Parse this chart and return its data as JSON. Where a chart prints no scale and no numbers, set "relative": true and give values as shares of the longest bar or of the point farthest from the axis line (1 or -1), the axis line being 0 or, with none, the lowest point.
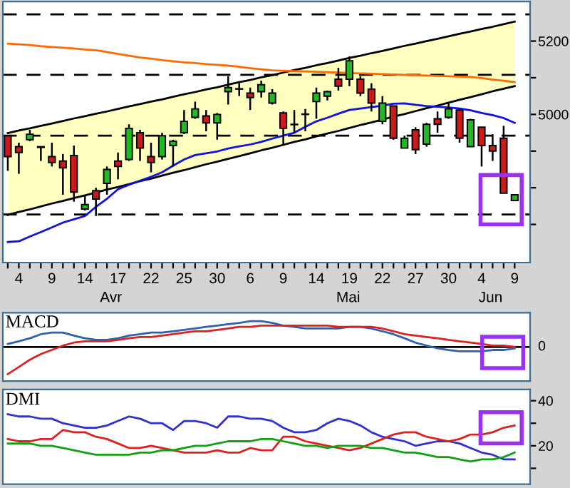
{
  "chart_data": [
    {
      "type": "candlestick",
      "categories": [
        null,
        "4",
        null,
        null,
        "9",
        null,
        null,
        "14",
        null,
        null,
        "17",
        null,
        null,
        "22",
        null,
        null,
        "25",
        null,
        null,
        "30",
        null,
        null,
        "6",
        null,
        null,
        "9",
        null,
        null,
        "14",
        null,
        null,
        "19",
        null,
        null,
        "22",
        null,
        null,
        "27",
        null,
        null,
        "30",
        null,
        null,
        "4",
        null,
        null,
        "9"
      ],
      "ohlc": [
        [
          4942,
          4942,
          4846,
          4885
        ],
        [
          4912,
          4923,
          4838,
          4896
        ],
        [
          4931,
          4958,
          4927,
          4946
        ],
        [
          4912,
          4912,
          4873,
          4910
        ],
        [
          4885,
          4923,
          4858,
          4869
        ],
        [
          4873,
          4892,
          4781,
          4854
        ],
        [
          4888,
          4915,
          4762,
          4788
        ],
        [
          4742,
          4781,
          4738,
          4754
        ],
        [
          4792,
          4800,
          4723,
          4769
        ],
        [
          4812,
          4858,
          4781,
          4850
        ],
        [
          4873,
          4896,
          4823,
          4858
        ],
        [
          4877,
          4973,
          4873,
          4962
        ],
        [
          4950,
          4958,
          4873,
          4908
        ],
        [
          4885,
          4923,
          4842,
          4869
        ],
        [
          4885,
          4950,
          4877,
          4942
        ],
        [
          4915,
          4931,
          4858,
          4927
        ],
        [
          4950,
          5012,
          4946,
          4981
        ],
        [
          4992,
          5035,
          4988,
          5015
        ],
        [
          4996,
          5012,
          4954,
          4977
        ],
        [
          4977,
          5004,
          4931,
          5000
        ],
        [
          5062,
          5104,
          5027,
          5073
        ],
        [
          5070,
          5085,
          5050,
          5069
        ],
        [
          5058,
          5073,
          5012,
          5046
        ],
        [
          5062,
          5092,
          5046,
          5081
        ],
        [
          5031,
          5069,
          5027,
          5058
        ],
        [
          5004,
          5008,
          4919,
          4962
        ],
        [
          4973,
          5012,
          4950,
          4972
        ],
        [
          5000,
          5015,
          4954,
          5001
        ],
        [
          5035,
          5073,
          4988,
          5058
        ],
        [
          5050,
          5065,
          5038,
          5062
        ],
        [
          5096,
          5127,
          5065,
          5077
        ],
        [
          5096,
          5158,
          5077,
          5146
        ],
        [
          5096,
          5104,
          5050,
          5058
        ],
        [
          5069,
          5085,
          5008,
          5031
        ],
        [
          4981,
          5050,
          4973,
          5031
        ],
        [
          5023,
          5023,
          4931,
          4935
        ],
        [
          4908,
          4942,
          4908,
          4935
        ],
        [
          4958,
          4965,
          4892,
          4904
        ],
        [
          4919,
          4977,
          4912,
          4973
        ],
        [
          4988,
          5008,
          4950,
          4973
        ],
        [
          4992,
          5031,
          4988,
          5015
        ],
        [
          5012,
          5015,
          4923,
          4935
        ],
        [
          4912,
          4988,
          4912,
          4985
        ],
        [
          4965,
          4965,
          4858,
          4915
        ],
        [
          4915,
          4946,
          4873,
          4900
        ],
        [
          4935,
          4969,
          4785,
          4785
        ],
        [
          4765,
          4781,
          4765,
          4781
        ]
      ],
      "colors": [
        "#cc1a1a",
        "#cc1a1a",
        "#22b822",
        "#cc1a1a",
        "#cc1a1a",
        "#cc1a1a",
        "#cc1a1a",
        "#22b822",
        "#cc1a1a",
        "#22b822",
        "#cc1a1a",
        "#22b822",
        "#cc1a1a",
        "#cc1a1a",
        "#22b822",
        "#22b822",
        "#22b822",
        "#22b822",
        "#cc1a1a",
        "#22b822",
        "#22b822",
        "#cc1a1a",
        "#cc1a1a",
        "#22b822",
        "#22b822",
        "#cc1a1a",
        "#cc1a1a",
        "#22b822",
        "#22b822",
        "#22b822",
        "#cc1a1a",
        "#22b822",
        "#cc1a1a",
        "#cc1a1a",
        "#22b822",
        "#cc1a1a",
        "#22b822",
        "#cc1a1a",
        "#22b822",
        "#cc1a1a",
        "#22b822",
        "#cc1a1a",
        "#22b822",
        "#cc1a1a",
        "#cc1a1a",
        "#cc1a1a",
        "#22b822"
      ],
      "series": [
        {
          "type": "line",
          "color": "#000000",
          "upper": [
            4949,
            4956,
            4962,
            4969,
            4975,
            4982,
            4989,
            4995,
            5002,
            5008,
            5015,
            5022,
            5028,
            5035,
            5041,
            5048,
            5055,
            5061,
            5068,
            5074,
            5081,
            5088,
            5094,
            5101,
            5107,
            5114,
            5121,
            5127,
            5134,
            5140,
            5147,
            5154,
            5160,
            5167,
            5173,
            5180,
            5187,
            5193,
            5200,
            5206,
            5213,
            5220,
            5226,
            5233,
            5239,
            5246,
            5253
          ],
          "values": [
            4949,
            4956,
            4962,
            4969,
            4975,
            4982,
            4989,
            4995,
            5002,
            5008,
            5015,
            5022,
            5028,
            5035,
            5041,
            5048,
            5055,
            5061,
            5068,
            5074,
            5081,
            5088,
            5094,
            5101,
            5107,
            5114,
            5121,
            5127,
            5134,
            5140,
            5147,
            5154,
            5160,
            5167,
            5173,
            5180,
            5187,
            5193,
            5200,
            5206,
            5213,
            5220,
            5226,
            5233,
            5239,
            5246,
            5253
          ],
          "lower": [
            4726,
            4734,
            4741,
            4749,
            4757,
            4764,
            4772,
            4779,
            4787,
            4795,
            4802,
            4810,
            4818,
            4825,
            4833,
            4841,
            4848,
            4856,
            4864,
            4871,
            4879,
            4886,
            4894,
            4902,
            4909,
            4917,
            4925,
            4932,
            4940,
            4948,
            4955,
            4963,
            4971,
            4978,
            4986,
            4994,
            5001,
            5009,
            5017,
            5024,
            5032,
            5040,
            5047,
            5055,
            5063,
            5070,
            5077
          ]
        },
        {
          "type": "line",
          "color": "#000000",
          "values": [
            4726,
            4734,
            4741,
            4749,
            4757,
            4764,
            4772,
            4779,
            4787,
            4795,
            4802,
            4810,
            4818,
            4825,
            4833,
            4841,
            4848,
            4856,
            4864,
            4871,
            4879,
            4886,
            4894,
            4902,
            4909,
            4917,
            4925,
            4932,
            4940,
            4948,
            4955,
            4963,
            4971,
            4978,
            4986,
            4994,
            5001,
            5009,
            5017,
            5024,
            5032,
            5040,
            5047,
            5055,
            5063,
            5070,
            5077
          ]
        },
        {
          "type": "line",
          "color": "#ff6a00",
          "values": [
            5193,
            5191,
            5189,
            5186,
            5184,
            5182,
            5180,
            5177,
            5175,
            5170,
            5165,
            5160,
            5155,
            5152,
            5148,
            5145,
            5142,
            5140,
            5137,
            5135,
            5133,
            5130,
            5126,
            5123,
            5120,
            5119,
            5118,
            5117,
            5116,
            5115,
            5114,
            5113,
            5112,
            5111,
            5110,
            5109,
            5108,
            5107,
            5106,
            5105,
            5104,
            5103,
            5102,
            5099,
            5095,
            5092,
            5088
          ]
        },
        {
          "type": "line",
          "color": "#1010e0",
          "values": [
            4652,
            4654,
            4667,
            4679,
            4692,
            4705,
            4714,
            4723,
            4748,
            4770,
            4796,
            4808,
            4819,
            4830,
            4842,
            4860,
            4877,
            4889,
            4894,
            4899,
            4907,
            4913,
            4918,
            4925,
            4934,
            4942,
            4950,
            4966,
            4981,
            4991,
            5002,
            5012,
            5016,
            5020,
            5024,
            5029,
            5030,
            5026,
            5023,
            5021,
            5019,
            5016,
            5011,
            5004,
            4998,
            4990,
            4977
          ]
        }
      ],
      "ref_lines": [
        {
          "axis": "y",
          "value": 5273,
          "color": "#000000",
          "line_style": "dashed"
        },
        {
          "axis": "y",
          "value": 5108,
          "color": "#000000",
          "line_style": "dashed"
        },
        {
          "axis": "y",
          "value": 4942,
          "color": "#000000",
          "line_style": "dashed"
        },
        {
          "axis": "y",
          "value": 4727,
          "color": "#000000",
          "line_style": "dashed"
        }
      ],
      "ylim": [
        4596,
        5308
      ],
      "yticks": [
        {
          "value": 4700,
          "label": null
        },
        {
          "value": 4800,
          "label": null
        },
        {
          "value": 4900,
          "label": null
        },
        5000,
        {
          "value": 5100,
          "label": null
        },
        5200
      ],
      "annotations": [
        "Avr",
        "Mai",
        "Jun"
      ]
    },
    {
      "type": "line",
      "title": "MACD",
      "relative": true,
      "tick_labels": false,
      "categories": [
        null,
        "4",
        null,
        null,
        "9",
        null,
        null,
        "14",
        null,
        null,
        "17",
        null,
        null,
        "22",
        null,
        null,
        "25",
        null,
        null,
        "30",
        null,
        null,
        "6",
        null,
        null,
        "9",
        null,
        null,
        "14",
        null,
        null,
        "19",
        null,
        null,
        "22",
        null,
        null,
        "27",
        null,
        null,
        "30",
        null,
        null,
        "4",
        null,
        null,
        "9"
      ],
      "series": [
        {
          "color": "#3060b0",
          "values": [
            0.11,
            0.21,
            0.32,
            0.47,
            0.53,
            0.53,
            0.42,
            0.32,
            0.26,
            0.26,
            0.32,
            0.42,
            0.47,
            0.53,
            0.53,
            0.58,
            0.63,
            0.68,
            0.74,
            0.79,
            0.84,
            0.89,
            0.95,
            0.95,
            0.89,
            0.79,
            0.74,
            0.68,
            0.68,
            0.68,
            0.68,
            0.74,
            0.74,
            0.68,
            0.58,
            0.47,
            0.32,
            0.16,
            0.05,
            -0.05,
            -0.11,
            -0.16,
            -0.16,
            -0.16,
            -0.11,
            -0.11,
            -0.05
          ]
        },
        {
          "color": "#dd2020",
          "values": [
            -1,
            -0.74,
            -0.47,
            -0.26,
            -0.11,
            0.05,
            0.16,
            0.21,
            0.21,
            0.21,
            0.26,
            0.32,
            0.37,
            0.37,
            0.42,
            0.47,
            0.53,
            0.58,
            0.58,
            0.63,
            0.68,
            0.74,
            0.74,
            0.79,
            0.79,
            0.79,
            0.79,
            0.79,
            0.79,
            0.79,
            0.74,
            0.74,
            0.74,
            0.74,
            0.68,
            0.58,
            0.47,
            0.42,
            0.37,
            0.32,
            0.26,
            0.21,
            0.16,
            0.11,
            0.05,
            0.05,
            0
          ]
        }
      ],
      "ref_lines": [
        {
          "axis": "y",
          "value": 0,
          "label": "0",
          "color": "#000000",
          "line_style": "solid"
        }
      ]
    },
    {
      "type": "line",
      "title": "DMI",
      "tick_labels": "y",
      "categories": [
        null,
        "4",
        null,
        null,
        "9",
        null,
        null,
        "14",
        null,
        null,
        "17",
        null,
        null,
        "22",
        null,
        null,
        "25",
        null,
        null,
        "30",
        null,
        null,
        "6",
        null,
        null,
        "9",
        null,
        null,
        "14",
        null,
        null,
        "19",
        null,
        null,
        "22",
        null,
        null,
        "27",
        null,
        null,
        "30",
        null,
        null,
        "4",
        null,
        null,
        "9"
      ],
      "series": [
        {
          "color": "#3030d0",
          "values": [
            34,
            33,
            33,
            32,
            32,
            30,
            29,
            28,
            28,
            29,
            31,
            33,
            32,
            30,
            30,
            27,
            31,
            31,
            30,
            28,
            33,
            33,
            32,
            32,
            31,
            28,
            26,
            26,
            27,
            30,
            32,
            31,
            29,
            26,
            24,
            23,
            22,
            20,
            21,
            22,
            22,
            21,
            19,
            17,
            16,
            14,
            14
          ]
        },
        {
          "color": "#dd2020",
          "values": [
            23,
            22,
            22,
            23,
            23,
            27,
            26,
            26,
            24,
            23,
            21,
            19,
            19,
            20,
            19,
            18,
            17,
            17,
            17,
            18,
            17,
            17,
            19,
            18,
            18,
            24,
            24,
            22,
            21,
            20,
            19,
            18,
            19,
            21,
            23,
            25,
            26,
            26,
            24,
            23,
            22,
            23,
            25,
            25,
            26,
            28,
            29
          ]
        },
        {
          "color": "#10a010",
          "values": [
            21,
            21,
            21,
            20,
            20,
            19,
            18,
            17,
            16,
            16,
            16,
            16,
            17,
            17,
            18,
            18,
            19,
            20,
            20,
            21,
            22,
            22,
            22,
            23,
            23,
            22,
            21,
            20,
            20,
            19,
            20,
            20,
            20,
            19,
            19,
            18,
            17,
            17,
            16,
            15,
            15,
            14,
            13,
            14,
            14,
            15,
            17
          ]
        }
      ],
      "ylim": [
        3,
        45
      ],
      "yticks": [
        {
          "value": 10,
          "label": null
        },
        20,
        {
          "value": 30,
          "label": null
        },
        40
      ]
    }
  ]
}
